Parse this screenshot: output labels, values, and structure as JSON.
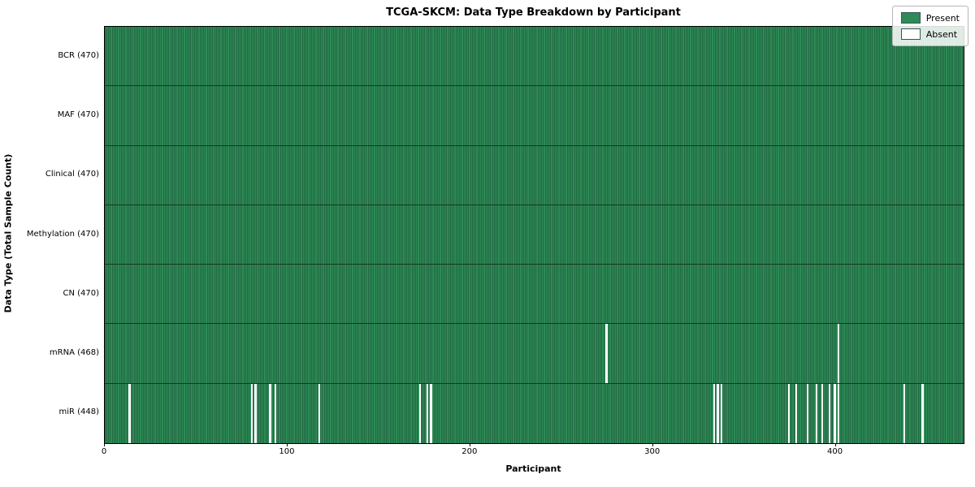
{
  "title": "TCGA-SKCM: Data Type Breakdown by Participant",
  "xlabel": "Participant",
  "ylabel": "Data Type (Total Sample Count)",
  "legend": {
    "present_label": "Present",
    "absent_label": "Absent",
    "position": "upper right"
  },
  "colors": {
    "present": "#2e8b57",
    "present_edge": "#16452c",
    "absent": "#ffffff",
    "row_separator": "#14391f"
  },
  "chart_data": {
    "type": "heatmap",
    "title": "TCGA-SKCM: Data Type Breakdown by Participant",
    "xlabel": "Participant",
    "ylabel": "Data Type (Total Sample Count)",
    "x_ticks": [
      0,
      100,
      200,
      300,
      400
    ],
    "x_range": [
      0,
      470
    ],
    "n_participants": 470,
    "grid": false,
    "rows": [
      {
        "label": "BCR (470)",
        "total": 470,
        "absent_participants": []
      },
      {
        "label": "MAF (470)",
        "total": 470,
        "absent_participants": []
      },
      {
        "label": "Clinical (470)",
        "total": 470,
        "absent_participants": []
      },
      {
        "label": "Methylation (470)",
        "total": 470,
        "absent_participants": []
      },
      {
        "label": "CN (470)",
        "total": 470,
        "absent_participants": []
      },
      {
        "label": "mRNA (468)",
        "total": 468,
        "absent_participants": [
          274,
          401
        ]
      },
      {
        "label": "miR (448)",
        "total": 448,
        "absent_participants": [
          13,
          80,
          82,
          90,
          93,
          117,
          172,
          176,
          178,
          333,
          335,
          337,
          374,
          378,
          384,
          389,
          392,
          396,
          399,
          401,
          437,
          447
        ]
      }
    ]
  }
}
